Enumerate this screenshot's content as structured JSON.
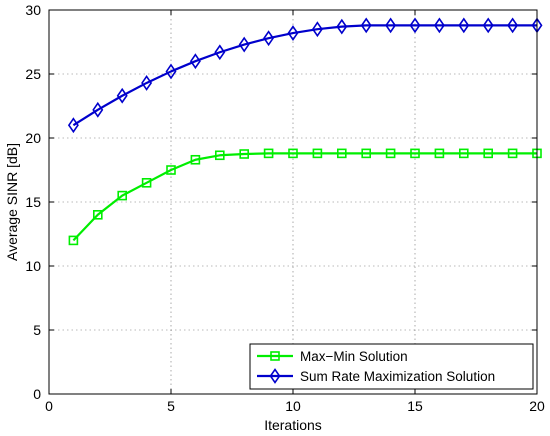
{
  "chart_data": {
    "type": "line",
    "title": "",
    "xlabel": "Iterations",
    "ylabel": "Average SINR [dB]",
    "xlim": [
      0,
      20
    ],
    "ylim": [
      0,
      30
    ],
    "xticks": [
      0,
      5,
      10,
      15,
      20
    ],
    "yticks": [
      0,
      5,
      10,
      15,
      20,
      25,
      30
    ],
    "grid": true,
    "legend_position": "bottom-right",
    "x": [
      1,
      2,
      3,
      4,
      5,
      6,
      7,
      8,
      9,
      10,
      11,
      12,
      13,
      14,
      15,
      16,
      17,
      18,
      19,
      20
    ],
    "series": [
      {
        "name": "Max−Min Solution",
        "color": "#00ee00",
        "marker": "square",
        "values": [
          12.0,
          14.0,
          15.5,
          16.5,
          17.5,
          18.3,
          18.65,
          18.75,
          18.8,
          18.8,
          18.8,
          18.8,
          18.8,
          18.8,
          18.8,
          18.8,
          18.8,
          18.8,
          18.8,
          18.8
        ]
      },
      {
        "name": "Sum Rate Maximization Solution",
        "color": "#0000cc",
        "marker": "diamond",
        "values": [
          21.0,
          22.2,
          23.3,
          24.3,
          25.2,
          26.0,
          26.7,
          27.3,
          27.8,
          28.2,
          28.5,
          28.7,
          28.8,
          28.8,
          28.8,
          28.8,
          28.8,
          28.8,
          28.8,
          28.8
        ]
      }
    ]
  }
}
